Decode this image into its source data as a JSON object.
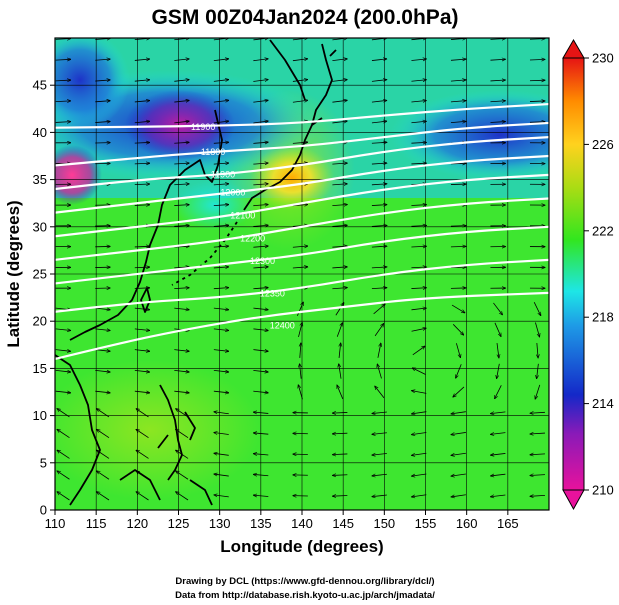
{
  "title": "GSM 00Z04Jan2024 (200.0hPa)",
  "chart_data": {
    "type": "heatmap",
    "map_region": "East Asia / Western Pacific",
    "variable_shaded": "temperature (K) at 200 hPa",
    "xlabel": "Longitude (degrees)",
    "ylabel": "Latitude  (degrees)",
    "xlim": [
      110,
      170
    ],
    "ylim": [
      0,
      50
    ],
    "x_ticks": [
      110,
      115,
      120,
      125,
      130,
      135,
      140,
      145,
      150,
      155,
      160,
      165
    ],
    "y_ticks": [
      0,
      5,
      10,
      15,
      20,
      25,
      30,
      35,
      40,
      45
    ],
    "grid": true,
    "colorbar": {
      "position": "right",
      "range": [
        210,
        230
      ],
      "tick_labels": [
        "230",
        "226",
        "222",
        "218",
        "214",
        "210"
      ],
      "colors": [
        "#e8129c",
        "#1428c8",
        "#1ee6e6",
        "#32e61e",
        "#aadc14",
        "#ffd21e",
        "#ff8c00",
        "#e61414"
      ]
    },
    "temperature_features": [
      {
        "lon": 122,
        "lat": 43,
        "value": 211
      },
      {
        "lon": 111,
        "lat": 38,
        "value": 210
      },
      {
        "lon": 140,
        "lat": 36,
        "value": 227
      },
      {
        "lon": 160,
        "lat": 40,
        "value": 214
      },
      {
        "lon": 140,
        "lat": 5,
        "value": 221
      }
    ],
    "contour_lines": [
      {
        "label": "11900",
        "path": [
          [
            110,
            40.5
          ],
          [
            120,
            40.6
          ],
          [
            130,
            40.7
          ],
          [
            140,
            41
          ],
          [
            150,
            41.8
          ],
          [
            160,
            42.5
          ],
          [
            170,
            43
          ]
        ]
      },
      {
        "label": "11800",
        "path": [
          [
            110,
            36.5
          ],
          [
            120,
            37.3
          ],
          [
            130,
            38
          ],
          [
            140,
            38.5
          ],
          [
            150,
            39.5
          ],
          [
            160,
            40.5
          ],
          [
            170,
            41
          ]
        ]
      },
      {
        "label": "11900",
        "path": [
          [
            110,
            34
          ],
          [
            120,
            35
          ],
          [
            130,
            35.5
          ],
          [
            140,
            36.5
          ],
          [
            150,
            38
          ],
          [
            160,
            39
          ],
          [
            170,
            39.5
          ]
        ]
      },
      {
        "label": "12000",
        "path": [
          [
            110,
            31.5
          ],
          [
            120,
            32.5
          ],
          [
            130,
            33.5
          ],
          [
            140,
            34.5
          ],
          [
            150,
            36
          ],
          [
            160,
            37
          ],
          [
            170,
            37.5
          ]
        ]
      },
      {
        "label": "12100",
        "path": [
          [
            110,
            29
          ],
          [
            120,
            30
          ],
          [
            130,
            31
          ],
          [
            140,
            32.5
          ],
          [
            150,
            34
          ],
          [
            160,
            35
          ],
          [
            170,
            35.5
          ]
        ]
      },
      {
        "label": "12200",
        "path": [
          [
            110,
            26.5
          ],
          [
            120,
            27.5
          ],
          [
            130,
            28.5
          ],
          [
            140,
            30
          ],
          [
            150,
            31.5
          ],
          [
            160,
            32.5
          ],
          [
            170,
            33
          ]
        ]
      },
      {
        "label": "12300",
        "path": [
          [
            110,
            24
          ],
          [
            120,
            25
          ],
          [
            130,
            26
          ],
          [
            140,
            27
          ],
          [
            150,
            28.5
          ],
          [
            160,
            29.5
          ],
          [
            170,
            30
          ]
        ]
      },
      {
        "label": "12350",
        "path": [
          [
            110,
            21
          ],
          [
            120,
            22
          ],
          [
            130,
            22.5
          ],
          [
            140,
            23.5
          ],
          [
            150,
            25
          ],
          [
            160,
            26
          ],
          [
            170,
            26.5
          ]
        ]
      },
      {
        "label": "12400",
        "path": [
          [
            110,
            16
          ],
          [
            117,
            17.5
          ],
          [
            125,
            19
          ],
          [
            135,
            20.5
          ],
          [
            145,
            21.5
          ],
          [
            155,
            22.5
          ],
          [
            170,
            23
          ]
        ]
      }
    ],
    "contour_label_text": [
      "11900",
      "11800",
      "11900",
      "12000",
      "12100",
      "12200",
      "12300",
      "12350",
      "12400"
    ],
    "wind_field_features": [
      {
        "type": "westerly_jet",
        "lat_range": [
          25,
          45
        ],
        "direction": "west-to-east"
      },
      {
        "type": "anticyclone",
        "lon": 155,
        "lat": 16
      },
      {
        "type": "easterlies",
        "lat_range": [
          0,
          12
        ],
        "direction": "east-to-west"
      }
    ]
  },
  "credits": {
    "line1": "Drawing by DCL (https://www.gfd-dennou.org/library/dcl/)",
    "line2": "Data from http://database.rish.kyoto-u.ac.jp/arch/jmadata/"
  }
}
